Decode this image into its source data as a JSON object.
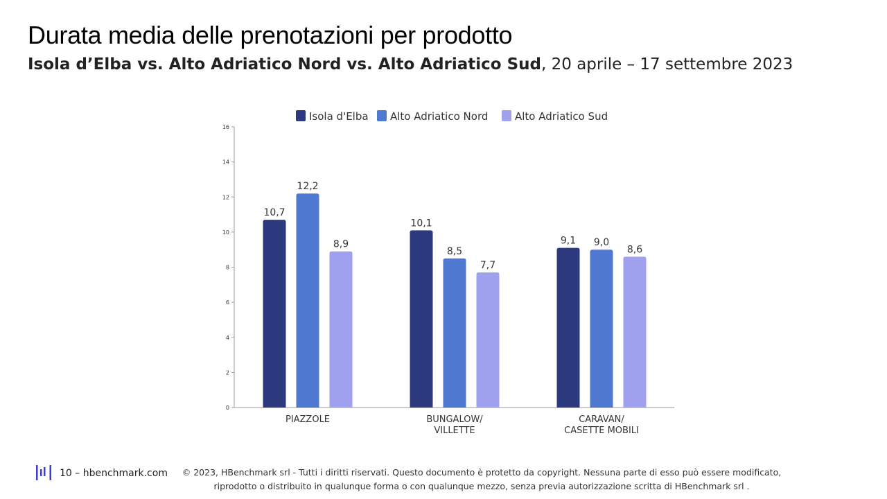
{
  "header": {
    "title": "Durata media delle prenotazioni per prodotto",
    "subtitle_bold": "Isola d’Elba vs. Alto Adriatico Nord vs. Alto Adriatico Sud",
    "subtitle_rest": ", 20 aprile – 17 settembre 2023"
  },
  "chart_data": {
    "type": "bar",
    "title": "",
    "xlabel": "",
    "ylabel": "",
    "ylim": [
      0,
      16
    ],
    "yticks": [
      "0",
      "2",
      "4",
      "6",
      "8",
      "10",
      "12",
      "14",
      "16"
    ],
    "ytick_values": [
      0,
      2,
      4,
      6,
      8,
      10,
      12,
      14,
      16
    ],
    "categories": [
      [
        "PIAZZOLE"
      ],
      [
        "BUNGALOW/",
        "VILLETTE"
      ],
      [
        "CARAVAN/",
        "CASETTE MOBILI"
      ]
    ],
    "series": [
      {
        "name": "Isola d'Elba",
        "color": "#2e3a7e",
        "values": [
          10.7,
          10.1,
          9.1
        ],
        "labels": [
          "10,7",
          "10,1",
          "9,1"
        ]
      },
      {
        "name": "Alto Adriatico Nord",
        "color": "#5079d1",
        "values": [
          12.2,
          8.5,
          9.0
        ],
        "labels": [
          "12,2",
          "8,5",
          "9,0"
        ]
      },
      {
        "name": "Alto Adriatico Sud",
        "color": "#a0a1ee",
        "values": [
          8.9,
          7.7,
          8.6
        ],
        "labels": [
          "8,9",
          "7,7",
          "8,6"
        ]
      }
    ],
    "legend": "top",
    "grid": false
  },
  "footer": {
    "page": "10 – hbenchmark.com",
    "copyright_line1": "© 2023, HBenchmark srl - Tutti i diritti riservati. Questo documento è protetto da copyright. Nessuna parte di esso può essere modificato,",
    "copyright_line2": "riprodotto o distribuito in qualunque forma o con qualunque mezzo, senza previa autorizzazione scritta di HBenchmark srl ."
  },
  "colors": {
    "logo": "#3b3bd6"
  }
}
